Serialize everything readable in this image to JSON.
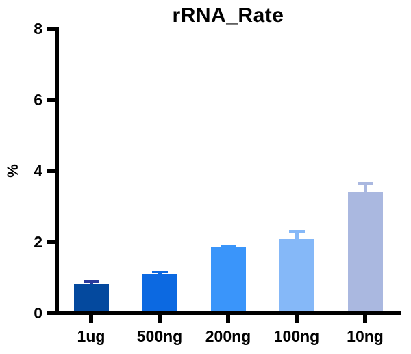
{
  "chart_data": {
    "type": "bar",
    "title": "rRNA_Rate",
    "ylabel": "%",
    "xlabel": "",
    "categories": [
      "1ug",
      "500ng",
      "200ng",
      "100ng",
      "10ng"
    ],
    "values": [
      0.82,
      1.1,
      1.84,
      2.1,
      3.4
    ],
    "errors_upper": [
      0.1,
      0.09,
      0.06,
      0.22,
      0.27
    ],
    "bar_colors": [
      "#04499e",
      "#0c69e1",
      "#3a95fa",
      "#85b8f8",
      "#aab8e0"
    ],
    "error_bar_colors": [
      "#2a3a9c",
      "#0c69e1",
      "#3a95fa",
      "#85b8f8",
      "#aab8e0"
    ],
    "y_ticks": [
      "0",
      "2",
      "4",
      "6",
      "8"
    ],
    "ylim": [
      0,
      8
    ],
    "grid": false,
    "legend": "none",
    "axis_color": "#000000",
    "background": "#ffffff"
  }
}
